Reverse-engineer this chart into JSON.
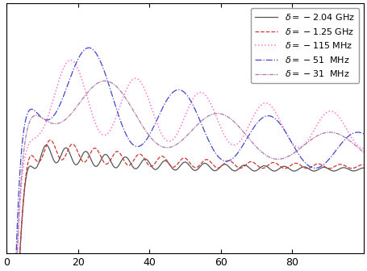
{
  "xlim": [
    0,
    100
  ],
  "xticks": [
    0,
    20,
    40,
    60,
    80
  ],
  "series": [
    {
      "label": "$\\delta = -2.04$ GHz",
      "color": "#555555",
      "linestyle": "solid",
      "linewidth": 0.9,
      "rise_rate": 0.55,
      "peak": 0.87,
      "steady": 0.84,
      "decay": 0.04,
      "osc_amp": 0.012,
      "osc_freq": 0.18,
      "osc_phase": 0.0
    },
    {
      "label": "$\\delta = -1.25$ GHz",
      "color": "#cc3333",
      "linestyle": "dashed",
      "linewidth": 0.9,
      "rise_rate": 0.55,
      "peak": 0.875,
      "steady": 0.843,
      "decay": 0.038,
      "osc_amp": 0.013,
      "osc_freq": 0.16,
      "osc_phase": 0.2
    },
    {
      "label": "$\\delta = -115$ MHz",
      "color": "#ff77cc",
      "linestyle": "dotted",
      "linewidth": 1.1,
      "rise_rate": 0.5,
      "peak": 0.94,
      "steady": 0.87,
      "decay": 0.018,
      "osc_amp": 0.045,
      "osc_freq": 0.055,
      "osc_phase": 0.0
    },
    {
      "label": "$\\delta = -51$  MHz",
      "color": "#4444cc",
      "linestyle": "dashdot",
      "linewidth": 0.9,
      "rise_rate": 0.5,
      "peak": 0.98,
      "steady": 0.845,
      "decay": 0.022,
      "osc_amp": 0.06,
      "osc_freq": 0.04,
      "osc_phase": 0.3
    },
    {
      "label": "$\\delta = -31$  MHz",
      "color": "#aa77aa",
      "linestyle": [
        0,
        [
          4,
          1,
          1,
          1
        ]
      ],
      "linewidth": 0.9,
      "rise_rate": 0.5,
      "peak": 0.95,
      "steady": 0.848,
      "decay": 0.02,
      "osc_amp": 0.04,
      "osc_freq": 0.032,
      "osc_phase": 0.5
    }
  ],
  "ylim": [
    0.75,
    1.02
  ],
  "yticks": [],
  "legend_loc": "upper right",
  "legend_fontsize": 8.0,
  "tick_fontsize": 9,
  "background_color": "#ffffff"
}
